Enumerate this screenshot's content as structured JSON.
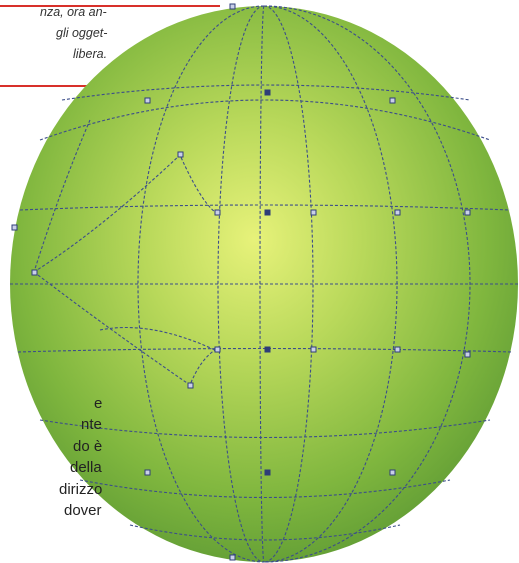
{
  "caption": [
    "nza, ora an-",
    "gli ogget-",
    "libera."
  ],
  "body_text": [
    "e",
    "nte",
    "do è",
    "della",
    "dirizzo",
    "dover"
  ]
}
